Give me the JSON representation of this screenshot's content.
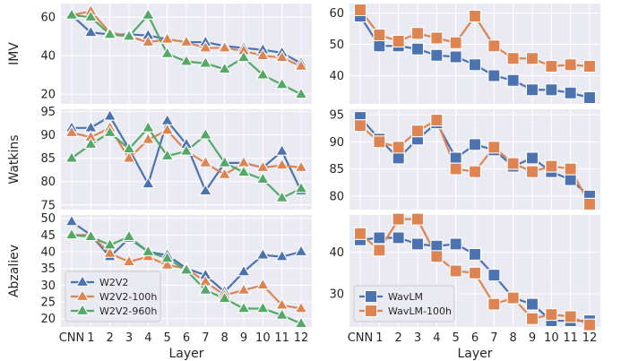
{
  "chart_data": {
    "type": "line",
    "categories": [
      "CNN",
      "1",
      "2",
      "3",
      "4",
      "5",
      "6",
      "7",
      "8",
      "9",
      "10",
      "11",
      "12"
    ],
    "xlabel": "Layer",
    "colors": {
      "W2V2": "#4c72b0",
      "W2V2-100h": "#dd8452",
      "W2V2-960h": "#55a868",
      "WavLM": "#4c72b0",
      "WavLM-100h": "#dd8452"
    },
    "panels": [
      {
        "id": "imv-w2v2",
        "ylabel": "IMV",
        "ylim": [
          15,
          67
        ],
        "yticks": [
          20,
          40,
          60
        ],
        "marker": "triangle",
        "series": [
          {
            "name": "W2V2",
            "values": [
              61,
              52,
              51,
              51,
              50.5,
              48.5,
              47,
              47,
              45,
              44,
              43,
              41.5,
              36
            ]
          },
          {
            "name": "W2V2-100h",
            "values": [
              61,
              63,
              52,
              50,
              47,
              48.5,
              47,
              44,
              44,
              42.5,
              40,
              39,
              34.5
            ]
          },
          {
            "name": "W2V2-960h",
            "values": [
              61,
              60,
              51,
              50,
              61,
              41,
              37,
              36,
              33,
              39,
              30,
              25,
              20
            ]
          }
        ]
      },
      {
        "id": "imv-wavlm",
        "ylabel": "",
        "ylim": [
          31,
          63
        ],
        "yticks": [
          40,
          50,
          60
        ],
        "marker": "square",
        "series": [
          {
            "name": "WavLM",
            "values": [
              59,
              49.5,
              49.5,
              48.5,
              46.5,
              46,
              43.5,
              40,
              38.5,
              35.5,
              35.5,
              34.5,
              33
            ]
          },
          {
            "name": "WavLM-100h",
            "values": [
              61,
              53,
              51,
              53.5,
              52,
              50.5,
              59,
              49.5,
              45.5,
              45.5,
              43,
              43.5,
              43
            ]
          }
        ]
      },
      {
        "id": "watkins-w2v2",
        "ylabel": "Watkins",
        "ylim": [
          74,
          95.5
        ],
        "yticks": [
          75,
          80,
          85,
          90,
          95
        ],
        "marker": "triangle",
        "series": [
          {
            "name": "W2V2",
            "values": [
              91.5,
              91.5,
              94,
              87,
              79.5,
              93,
              88,
              78,
              84,
              84,
              83,
              86.5,
              78
            ]
          },
          {
            "name": "W2V2-100h",
            "values": [
              90.5,
              89.5,
              91.5,
              85,
              89,
              91,
              86.5,
              84,
              81.5,
              84,
              83,
              83.5,
              83
            ]
          },
          {
            "name": "W2V2-960h",
            "values": [
              85,
              88,
              90.5,
              87,
              91.5,
              85.5,
              86.5,
              90,
              84,
              82,
              80.5,
              76.5,
              78.5
            ]
          }
        ]
      },
      {
        "id": "watkins-wavlm",
        "ylabel": "",
        "ylim": [
          77.5,
          96
        ],
        "yticks": [
          80,
          85,
          90,
          95
        ],
        "marker": "square",
        "series": [
          {
            "name": "WavLM",
            "values": [
              94.5,
              90.5,
              87,
              90.5,
              93.5,
              87,
              89.5,
              88.5,
              85.5,
              87,
              84.5,
              83,
              80
            ]
          },
          {
            "name": "WavLM-100h",
            "values": [
              93,
              90,
              89,
              92,
              94,
              85,
              84.5,
              89,
              86,
              84.5,
              85.5,
              85,
              78.5
            ]
          }
        ]
      },
      {
        "id": "abzaliev-w2v2",
        "ylabel": "Abzaliev",
        "ylim": [
          17.5,
          51
        ],
        "yticks": [
          20,
          25,
          30,
          35,
          40,
          45,
          50
        ],
        "marker": "triangle",
        "series": [
          {
            "name": "W2V2",
            "values": [
              49,
              45,
              38.5,
              44,
              40,
              39,
              35,
              33,
              28,
              34,
              39,
              38.5,
              40
            ]
          },
          {
            "name": "W2V2-100h",
            "values": [
              45,
              45,
              39.5,
              37,
              38.5,
              36,
              35,
              31,
              27,
              28.5,
              30,
              24,
              23
            ]
          },
          {
            "name": "W2V2-960h",
            "values": [
              45,
              44.5,
              42,
              44.5,
              40,
              38,
              34.5,
              28.5,
              26,
              23,
              23,
              21,
              18.5
            ]
          }
        ]
      },
      {
        "id": "abzaliev-wavlm",
        "ylabel": "",
        "ylim": [
          22,
          49
        ],
        "yticks": [
          30,
          40
        ],
        "marker": "square",
        "series": [
          {
            "name": "WavLM",
            "values": [
              43,
              43.5,
              43.5,
              42,
              41.5,
              42,
              39.5,
              34.5,
              29,
              27.5,
              23.5,
              23.5,
              23.5
            ]
          },
          {
            "name": "WavLM-100h",
            "values": [
              44.5,
              40.5,
              48,
              48,
              39,
              35.5,
              35,
              27.5,
              29,
              24,
              25,
              24.5,
              22.5
            ]
          }
        ]
      }
    ],
    "legends": [
      {
        "panel": "abzaliev-w2v2",
        "placement": "lower-left",
        "entries": [
          "W2V2",
          "W2V2-100h",
          "W2V2-960h"
        ]
      },
      {
        "panel": "abzaliev-wavlm",
        "placement": "lower-left",
        "entries": [
          "WavLM",
          "WavLM-100h"
        ]
      }
    ],
    "grid": true
  }
}
